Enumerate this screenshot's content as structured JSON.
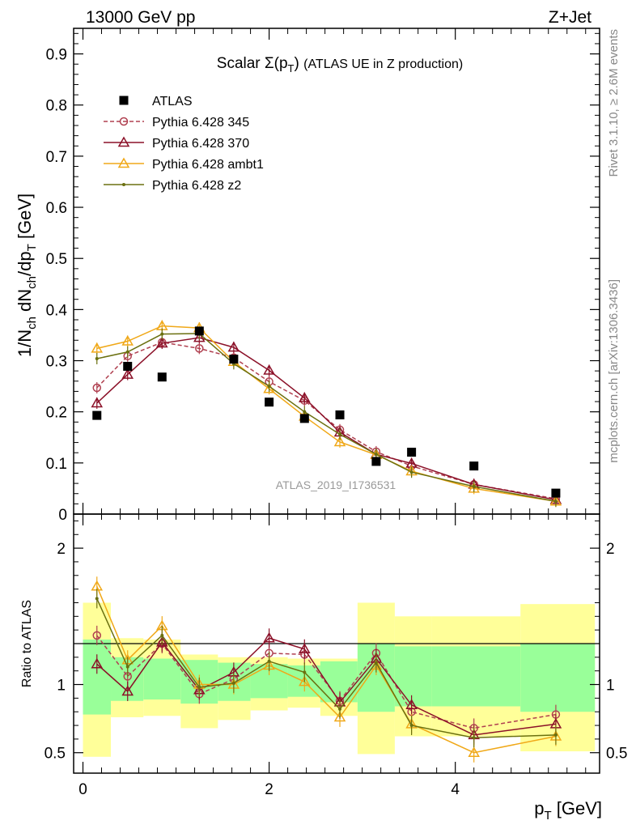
{
  "header": {
    "left": "13000 GeV pp",
    "right": "Z+Jet"
  },
  "side_text": {
    "rivet": "Rivet 3.1.10, ≥ 2.6M events",
    "mcplots": "mcplots.cern.ch [arXiv:1306.3436]"
  },
  "colors": {
    "atlas": "#000000",
    "p345": "#b04050",
    "p370": "#8b1028",
    "ambt1": "#f0a818",
    "z2": "#6b7010",
    "band_inner": "#99ff99",
    "band_outer": "#ffff99"
  },
  "chart_data": {
    "type": "line",
    "title": "Scalar Σ(pT) (ATLAS UE in Z production)",
    "watermark": "ATLAS_2019_I1736531",
    "xlabel": "pT [GeV]",
    "ylabel": "1/Nch dNch/dpT [GeV]",
    "ratio_ylabel": "Ratio to ATLAS",
    "xlim": [
      -0.1,
      5.55
    ],
    "ylim": [
      0,
      0.95
    ],
    "ratio_ylim": [
      0.35,
      2.25
    ],
    "x_ticks": [
      "0",
      "2",
      "4"
    ],
    "y_ticks": [
      "0",
      "0.1",
      "0.2",
      "0.3",
      "0.4",
      "0.5",
      "0.6",
      "0.7",
      "0.8",
      "0.9"
    ],
    "ratio_ticks": [
      "0.5",
      "1",
      "2"
    ],
    "legend_position": "top-left",
    "x": [
      0.15,
      0.48,
      0.85,
      1.25,
      1.62,
      2.0,
      2.38,
      2.76,
      3.15,
      3.53,
      4.2,
      5.08
    ],
    "bins": [
      0,
      0.3,
      0.65,
      1.05,
      1.45,
      1.8,
      2.2,
      2.55,
      2.95,
      3.35,
      3.75,
      4.7,
      5.5
    ],
    "data": {
      "name": "ATLAS",
      "values": [
        0.193,
        0.289,
        0.268,
        0.358,
        0.303,
        0.219,
        0.187,
        0.194,
        0.103,
        0.121,
        0.094,
        0.041
      ],
      "ratio_band_inner": [
        [
          0.78,
          1.33
        ],
        [
          0.88,
          1.2
        ],
        [
          0.89,
          1.19
        ],
        [
          0.86,
          1.18
        ],
        [
          0.88,
          1.16
        ],
        [
          0.9,
          1.15
        ],
        [
          0.91,
          1.14
        ],
        [
          0.87,
          1.17
        ],
        [
          0.8,
          1.3
        ],
        [
          0.84,
          1.28
        ],
        [
          0.84,
          1.28
        ],
        [
          0.8,
          1.3
        ]
      ],
      "ratio_band_outer": [
        [
          0.47,
          1.6
        ],
        [
          0.76,
          1.34
        ],
        [
          0.77,
          1.33
        ],
        [
          0.68,
          1.22
        ],
        [
          0.74,
          1.2
        ],
        [
          0.81,
          1.2
        ],
        [
          0.83,
          1.19
        ],
        [
          0.77,
          1.19
        ],
        [
          0.49,
          1.6
        ],
        [
          0.62,
          1.5
        ],
        [
          0.62,
          1.5
        ],
        [
          0.51,
          1.59
        ]
      ]
    },
    "series": [
      {
        "name": "Pythia 6.428 345",
        "marker": "circle-open",
        "dashed": true,
        "values": [
          0.247,
          0.309,
          0.336,
          0.324,
          0.306,
          0.259,
          0.222,
          0.165,
          0.122,
          0.094,
          0.058,
          0.03
        ],
        "ratio": [
          1.36,
          1.06,
          1.3,
          0.93,
          1.04,
          1.23,
          1.22,
          0.88,
          1.23,
          0.8,
          0.68,
          0.78
        ]
      },
      {
        "name": "Pythia 6.428 370",
        "marker": "triangle-open",
        "dashed": false,
        "values": [
          0.217,
          0.273,
          0.334,
          0.345,
          0.326,
          0.281,
          0.227,
          0.16,
          0.117,
          0.099,
          0.058,
          0.028
        ],
        "ratio": [
          1.15,
          0.95,
          1.31,
          0.96,
          1.09,
          1.34,
          1.26,
          0.87,
          1.19,
          0.85,
          0.63,
          0.71
        ]
      },
      {
        "name": "Pythia 6.428 ambt1",
        "marker": "triangle-open",
        "dashed": false,
        "values": [
          0.324,
          0.338,
          0.368,
          0.364,
          0.298,
          0.245,
          0.191,
          0.141,
          0.116,
          0.084,
          0.05,
          0.025
        ],
        "ratio": [
          1.72,
          1.18,
          1.43,
          1.0,
          1.0,
          1.14,
          1.02,
          0.76,
          1.14,
          0.71,
          0.5,
          0.62
        ]
      },
      {
        "name": "Pythia 6.428 z2",
        "marker": "dot",
        "dashed": false,
        "values": [
          0.304,
          0.317,
          0.352,
          0.353,
          0.294,
          0.25,
          0.2,
          0.156,
          0.117,
          0.082,
          0.054,
          0.025
        ],
        "ratio": [
          1.63,
          1.13,
          1.36,
          0.98,
          1.01,
          1.17,
          1.09,
          0.82,
          1.16,
          0.7,
          0.61,
          0.63
        ]
      }
    ]
  }
}
